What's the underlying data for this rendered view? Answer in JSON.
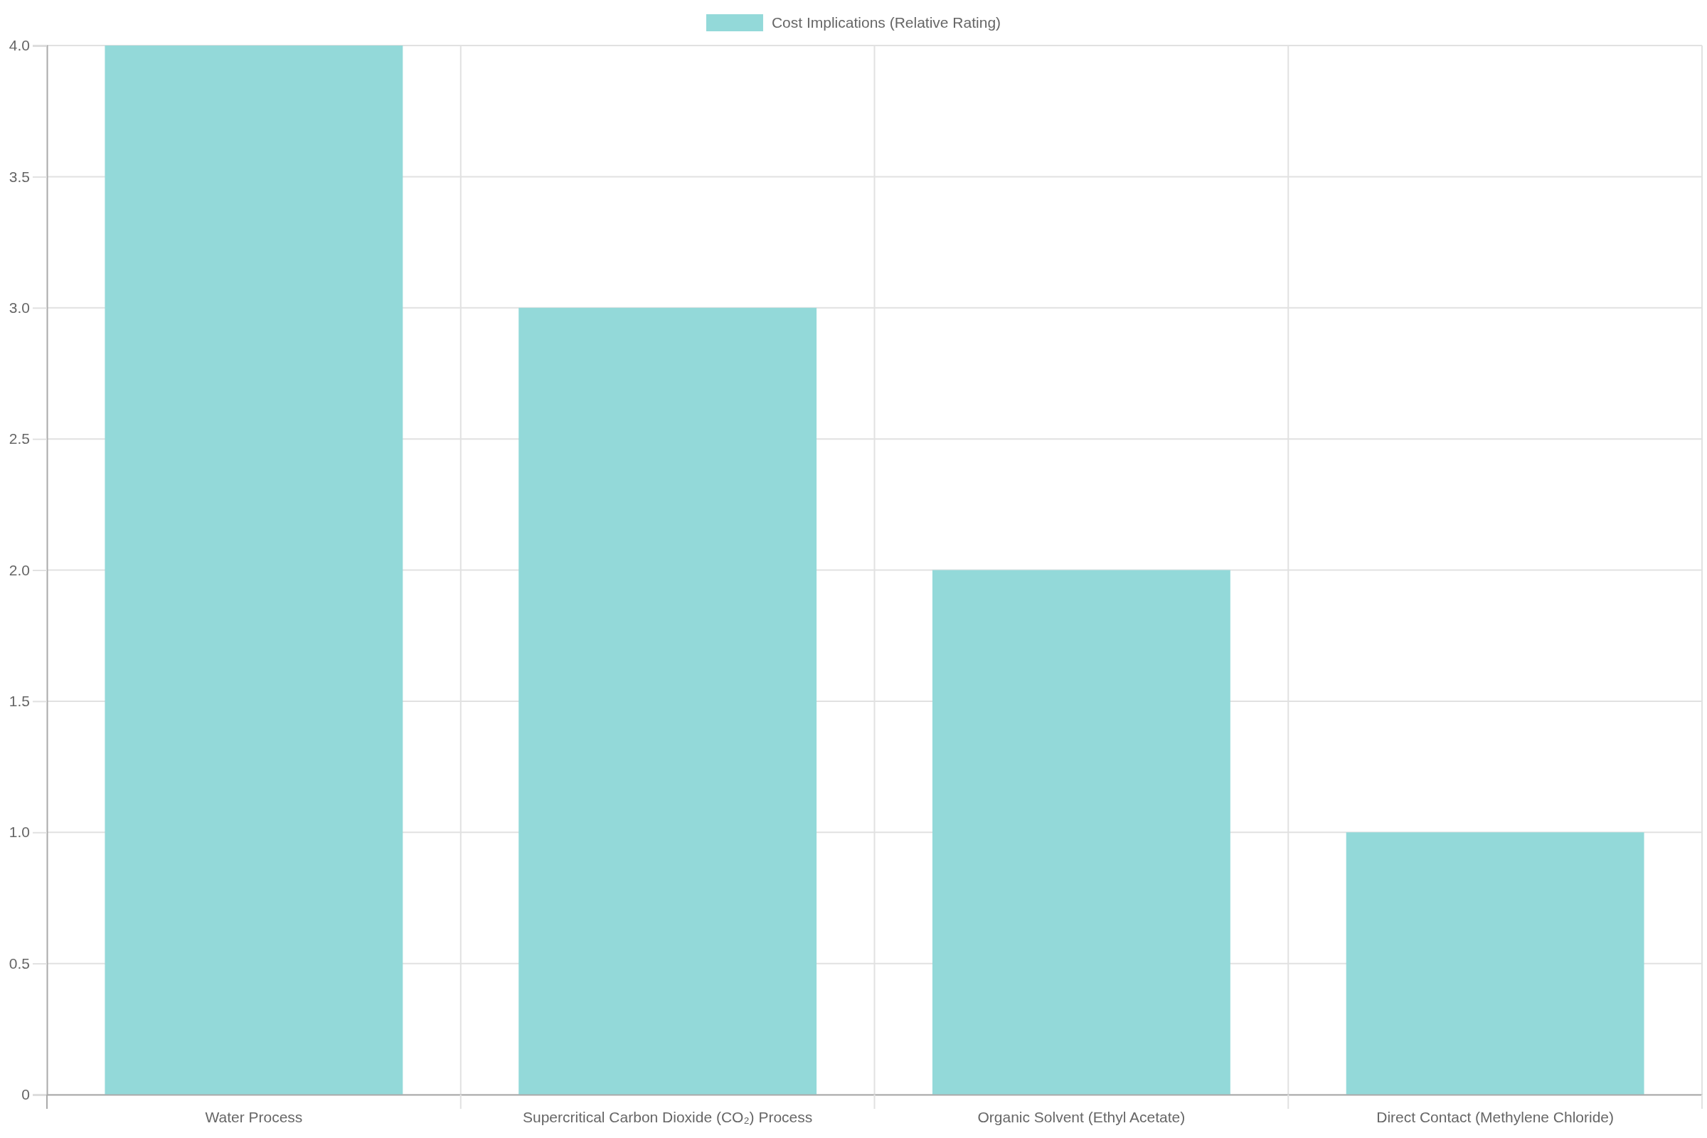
{
  "chart_data": {
    "type": "bar",
    "categories": [
      "Water Process",
      "Supercritical Carbon Dioxide (CO₂) Process",
      "Organic Solvent (Ethyl Acetate)",
      "Direct Contact (Methylene Chloride)"
    ],
    "series": [
      {
        "name": "Cost Implications (Relative Rating)",
        "color": "#93d9d9",
        "values": [
          4,
          3,
          2,
          1
        ]
      }
    ],
    "ylim": [
      0,
      4
    ],
    "yticks": [
      0,
      0.5,
      {
        "value": 1,
        "label": "1.0"
      },
      1.5,
      {
        "value": 2,
        "label": "2.0"
      },
      2.5,
      {
        "value": 3,
        "label": "3.0"
      },
      3.5,
      {
        "value": 4,
        "label": "4.0"
      }
    ],
    "grid": true,
    "legend": "top"
  }
}
